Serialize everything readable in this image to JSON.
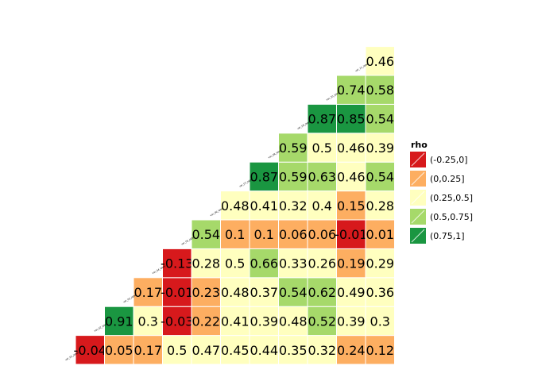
{
  "chart_data": {
    "type": "heatmap",
    "title": "",
    "variables": [
      "var_01_label",
      "var_02_label",
      "var_03_label",
      "var_04_label",
      "var_05_label",
      "var_06_label",
      "var_07_label",
      "var_08_label",
      "var_09_label",
      "var_10_label",
      "var_11_label"
    ],
    "rows": [
      [
        "-0.04",
        "0.05",
        "0.17",
        "0.5",
        "0.47",
        "0.45",
        "0.44",
        "0.35",
        "0.32",
        "0.24",
        "0.12"
      ],
      [
        "0.91",
        "0.3",
        "-0.03",
        "0.22",
        "0.41",
        "0.39",
        "0.48",
        "0.52",
        "0.39",
        "0.3"
      ],
      [
        "0.17",
        "-0.01",
        "0.23",
        "0.48",
        "0.37",
        "0.54",
        "0.62",
        "0.49",
        "0.36"
      ],
      [
        "-0.13",
        "0.28",
        "0.5",
        "0.66",
        "0.33",
        "0.26",
        "0.19",
        "0.29"
      ],
      [
        "0.54",
        "0.1",
        "0.1",
        "0.06",
        "0.06",
        "-0.01",
        "0.01"
      ],
      [
        "0.48",
        "0.41",
        "0.32",
        "0.4",
        "0.15",
        "0.28"
      ],
      [
        "0.87",
        "0.59",
        "0.63",
        "0.46",
        "0.54"
      ],
      [
        "0.59",
        "0.5",
        "0.46",
        "0.39"
      ],
      [
        "0.87",
        "0.85",
        "0.54"
      ],
      [
        "0.74",
        "0.58"
      ],
      [
        "0.46"
      ]
    ],
    "legend": {
      "title": "rho",
      "placement": "right",
      "bins": [
        {
          "label": "(-0.25,0]",
          "min": -0.25,
          "max": 0,
          "color": "#d7191c"
        },
        {
          "label": "(0,0.25]",
          "min": 0,
          "max": 0.25,
          "color": "#fdae61"
        },
        {
          "label": "(0.25,0.5]",
          "min": 0.25,
          "max": 0.5,
          "color": "#ffffbf"
        },
        {
          "label": "(0.5,0.75]",
          "min": 0.5,
          "max": 0.75,
          "color": "#a6d96a"
        },
        {
          "label": "(0.75,1]",
          "min": 0.75,
          "max": 1,
          "color": "#1a9641"
        }
      ]
    }
  }
}
